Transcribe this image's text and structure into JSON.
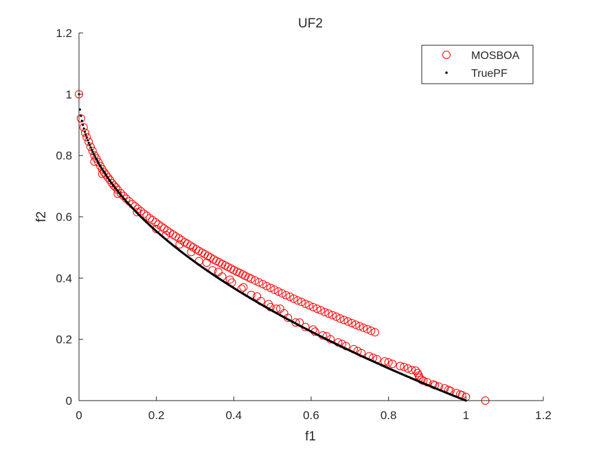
{
  "chart_data": {
    "type": "scatter",
    "title": "UF2",
    "xlabel": "f1",
    "ylabel": "f2",
    "xlim": [
      0,
      1.2
    ],
    "ylim": [
      0,
      1.2
    ],
    "xticks": [
      0,
      0.2,
      0.4,
      0.6,
      0.8,
      1,
      1.2
    ],
    "yticks": [
      0,
      0.2,
      0.4,
      0.6,
      0.8,
      1,
      1.2
    ],
    "xtick_labels": [
      "0",
      "0.2",
      "0.4",
      "0.6",
      "0.8",
      "1",
      "1.2"
    ],
    "ytick_labels": [
      "0",
      "0.2",
      "0.4",
      "0.6",
      "0.8",
      "1",
      "1.2"
    ],
    "grid": false,
    "legend_position": "top-right",
    "series": [
      {
        "name": "MOSBOA",
        "marker": "open-circle",
        "color": "#ff0000",
        "points": [
          [
            0.0,
            1.0
          ],
          [
            0.005,
            0.921
          ],
          [
            0.012,
            0.892
          ],
          [
            0.016,
            0.874
          ],
          [
            0.02,
            0.86
          ],
          [
            0.025,
            0.845
          ],
          [
            0.03,
            0.828
          ],
          [
            0.035,
            0.815
          ],
          [
            0.04,
            0.8
          ],
          [
            0.045,
            0.79
          ],
          [
            0.05,
            0.778
          ],
          [
            0.055,
            0.766
          ],
          [
            0.06,
            0.755
          ],
          [
            0.065,
            0.745
          ],
          [
            0.07,
            0.737
          ],
          [
            0.075,
            0.728
          ],
          [
            0.08,
            0.72
          ],
          [
            0.085,
            0.71
          ],
          [
            0.09,
            0.702
          ],
          [
            0.095,
            0.696
          ],
          [
            0.1,
            0.688
          ],
          [
            0.108,
            0.677
          ],
          [
            0.115,
            0.668
          ],
          [
            0.122,
            0.659
          ],
          [
            0.13,
            0.65
          ],
          [
            0.138,
            0.641
          ],
          [
            0.145,
            0.634
          ],
          [
            0.152,
            0.626
          ],
          [
            0.16,
            0.618
          ],
          [
            0.168,
            0.61
          ],
          [
            0.175,
            0.603
          ],
          [
            0.183,
            0.595
          ],
          [
            0.19,
            0.589
          ],
          [
            0.198,
            0.582
          ],
          [
            0.205,
            0.575
          ],
          [
            0.213,
            0.568
          ],
          [
            0.22,
            0.562
          ],
          [
            0.228,
            0.555
          ],
          [
            0.235,
            0.548
          ],
          [
            0.243,
            0.542
          ],
          [
            0.25,
            0.536
          ],
          [
            0.258,
            0.53
          ],
          [
            0.265,
            0.524
          ],
          [
            0.273,
            0.517
          ],
          [
            0.28,
            0.512
          ],
          [
            0.288,
            0.506
          ],
          [
            0.295,
            0.5
          ],
          [
            0.303,
            0.494
          ],
          [
            0.31,
            0.489
          ],
          [
            0.318,
            0.483
          ],
          [
            0.325,
            0.478
          ],
          [
            0.333,
            0.472
          ],
          [
            0.34,
            0.467
          ],
          [
            0.348,
            0.461
          ],
          [
            0.355,
            0.456
          ],
          [
            0.363,
            0.451
          ],
          [
            0.37,
            0.446
          ],
          [
            0.378,
            0.441
          ],
          [
            0.385,
            0.436
          ],
          [
            0.393,
            0.431
          ],
          [
            0.4,
            0.426
          ],
          [
            0.408,
            0.421
          ],
          [
            0.415,
            0.417
          ],
          [
            0.423,
            0.412
          ],
          [
            0.43,
            0.407
          ],
          [
            0.438,
            0.402
          ],
          [
            0.445,
            0.398
          ],
          [
            0.455,
            0.392
          ],
          [
            0.465,
            0.386
          ],
          [
            0.475,
            0.38
          ],
          [
            0.485,
            0.374
          ],
          [
            0.495,
            0.368
          ],
          [
            0.505,
            0.362
          ],
          [
            0.515,
            0.356
          ],
          [
            0.52,
            0.3
          ],
          [
            0.525,
            0.35
          ],
          [
            0.535,
            0.344
          ],
          [
            0.545,
            0.339
          ],
          [
            0.555,
            0.333
          ],
          [
            0.565,
            0.327
          ],
          [
            0.575,
            0.322
          ],
          [
            0.585,
            0.316
          ],
          [
            0.595,
            0.311
          ],
          [
            0.605,
            0.305
          ],
          [
            0.615,
            0.3
          ],
          [
            0.625,
            0.295
          ],
          [
            0.635,
            0.289
          ],
          [
            0.645,
            0.284
          ],
          [
            0.655,
            0.279
          ],
          [
            0.665,
            0.274
          ],
          [
            0.675,
            0.268
          ],
          [
            0.685,
            0.263
          ],
          [
            0.695,
            0.258
          ],
          [
            0.705,
            0.253
          ],
          [
            0.715,
            0.248
          ],
          [
            0.725,
            0.243
          ],
          [
            0.735,
            0.238
          ],
          [
            0.745,
            0.233
          ],
          [
            0.755,
            0.228
          ],
          [
            0.765,
            0.223
          ],
          [
            0.31,
            0.455
          ],
          [
            0.345,
            0.425
          ],
          [
            0.37,
            0.405
          ],
          [
            0.395,
            0.385
          ],
          [
            0.42,
            0.365
          ],
          [
            0.445,
            0.345
          ],
          [
            0.47,
            0.325
          ],
          [
            0.495,
            0.305
          ],
          [
            0.51,
            0.3
          ],
          [
            0.54,
            0.27
          ],
          [
            0.56,
            0.255
          ],
          [
            0.585,
            0.24
          ],
          [
            0.61,
            0.225
          ],
          [
            0.63,
            0.213
          ],
          [
            0.65,
            0.2
          ],
          [
            0.67,
            0.19
          ],
          [
            0.69,
            0.178
          ],
          [
            0.71,
            0.168
          ],
          [
            0.73,
            0.155
          ],
          [
            0.75,
            0.145
          ],
          [
            0.77,
            0.135
          ],
          [
            0.79,
            0.128
          ],
          [
            0.81,
            0.12
          ],
          [
            0.83,
            0.113
          ],
          [
            0.85,
            0.105
          ],
          [
            0.87,
            0.098
          ],
          [
            0.875,
            0.09
          ],
          [
            0.878,
            0.082
          ],
          [
            0.88,
            0.075
          ],
          [
            0.885,
            0.068
          ],
          [
            0.9,
            0.06
          ],
          [
            0.915,
            0.053
          ],
          [
            0.93,
            0.046
          ],
          [
            0.945,
            0.04
          ],
          [
            0.955,
            0.035
          ],
          [
            0.975,
            0.025
          ],
          [
            0.99,
            0.018
          ],
          [
            1.0,
            0.012
          ],
          [
            1.05,
            0.0
          ],
          [
            0.2,
            0.56
          ],
          [
            0.15,
            0.615
          ],
          [
            0.1,
            0.675
          ],
          [
            0.06,
            0.74
          ],
          [
            0.04,
            0.78
          ],
          [
            0.225,
            0.54
          ],
          [
            0.26,
            0.51
          ],
          [
            0.29,
            0.485
          ],
          [
            0.33,
            0.45
          ],
          [
            0.36,
            0.42
          ],
          [
            0.39,
            0.395
          ],
          [
            0.425,
            0.37
          ],
          [
            0.46,
            0.34
          ],
          [
            0.49,
            0.315
          ],
          [
            0.53,
            0.285
          ],
          [
            0.57,
            0.255
          ],
          [
            0.605,
            0.232
          ],
          [
            0.64,
            0.21
          ],
          [
            0.68,
            0.185
          ],
          [
            0.72,
            0.162
          ],
          [
            0.76,
            0.14
          ],
          [
            0.8,
            0.125
          ],
          [
            0.84,
            0.11
          ],
          [
            0.86,
            0.1
          ],
          [
            0.89,
            0.065
          ],
          [
            0.92,
            0.05
          ],
          [
            0.96,
            0.032
          ],
          [
            0.985,
            0.02
          ]
        ]
      },
      {
        "name": "TruePF",
        "marker": "dot",
        "color": "#000000",
        "function": "1 - sqrt(x)",
        "x_start": 0.0,
        "x_end": 1.0,
        "count": 400
      }
    ]
  }
}
